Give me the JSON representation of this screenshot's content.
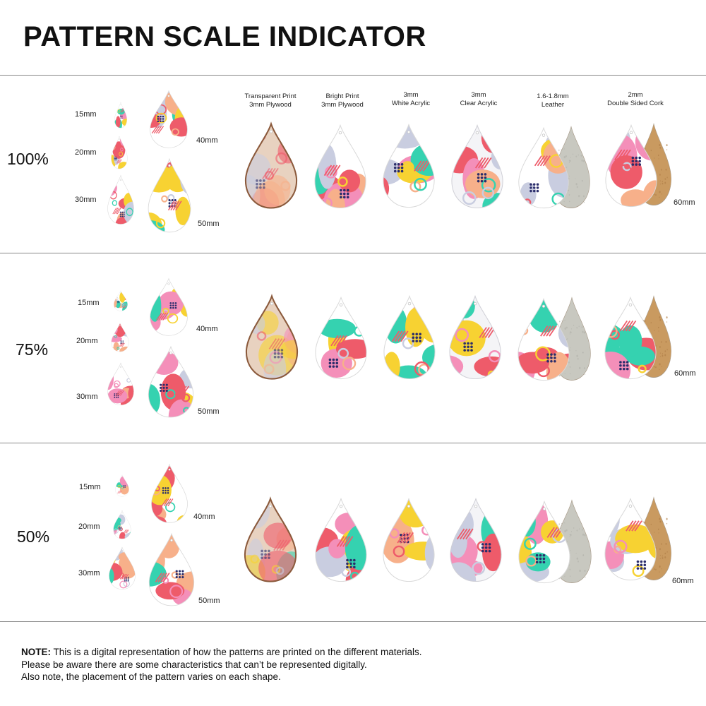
{
  "title": "PATTERN SCALE INDICATOR",
  "sizes": {
    "s15": "15mm",
    "s20": "20mm",
    "s30": "30mm",
    "s40": "40mm",
    "s50": "50mm",
    "s60": "60mm"
  },
  "materials": [
    {
      "line1": "Transparent Print",
      "line2": "3mm Plywood"
    },
    {
      "line1": "Bright Print",
      "line2": "3mm Plywood"
    },
    {
      "line1": "3mm",
      "line2": "White Acrylic"
    },
    {
      "line1": "3mm",
      "line2": "Clear Acrylic"
    },
    {
      "line1": "1.6-1.8mm",
      "line2": "Leather"
    },
    {
      "line1": "2mm",
      "line2": "Double Sided Cork"
    }
  ],
  "rows": [
    {
      "label": "100%"
    },
    {
      "label": "75%"
    },
    {
      "label": "50%"
    }
  ],
  "note": {
    "bold": "NOTE:",
    "line1": " This is a digital representation of how the patterns are printed on the different materials.",
    "line2": "Please be aware there are some characteristics that can’t be represented digitally.",
    "line3": "Also note, the placement of the pattern varies on each shape."
  },
  "colors": {
    "pink": "#f48fb9",
    "yellow": "#f7d232",
    "teal": "#35d2b0",
    "coral": "#ee5b6a",
    "navy": "#2b2d6b",
    "lavender": "#c9cde0",
    "peach": "#f7b08a",
    "leather": "#c8c8c0",
    "cork": "#c99a60"
  }
}
